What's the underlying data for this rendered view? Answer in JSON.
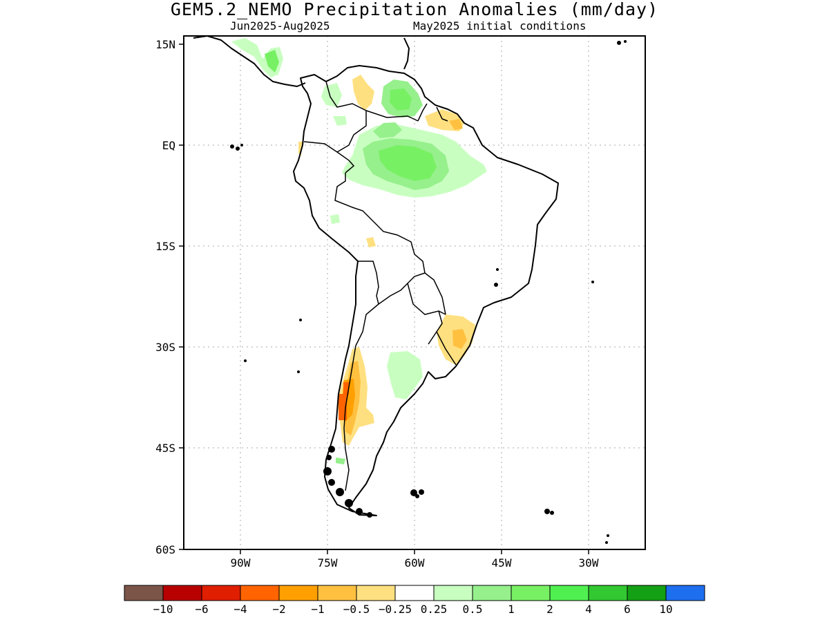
{
  "title": "GEM5.2_NEMO Precipitation Anomalies (mm/day)",
  "subtitle_left": "Jun2025-Aug2025",
  "subtitle_right": "May2025 initial conditions",
  "axes": {
    "lat_ticks": [
      "15N",
      "EQ",
      "15S",
      "30S",
      "45S",
      "60S"
    ],
    "lon_ticks": [
      "90W",
      "75W",
      "60W",
      "45W",
      "30W"
    ],
    "grid": "dotted"
  },
  "colorbar": {
    "colors": [
      "#7b5548",
      "#b80000",
      "#e01e00",
      "#ff6400",
      "#ffa000",
      "#ffc040",
      "#ffe080",
      "#ffffff",
      "#c8ffc0",
      "#96f08c",
      "#78f064",
      "#50f050",
      "#32c832",
      "#14a014",
      "#1e6ef0"
    ],
    "labels": [
      "-10",
      "-6",
      "-4",
      "-2",
      "-1",
      "-0.5",
      "-0.25",
      "0.25",
      "0.5",
      "1",
      "2",
      "4",
      "6",
      "10"
    ]
  }
}
